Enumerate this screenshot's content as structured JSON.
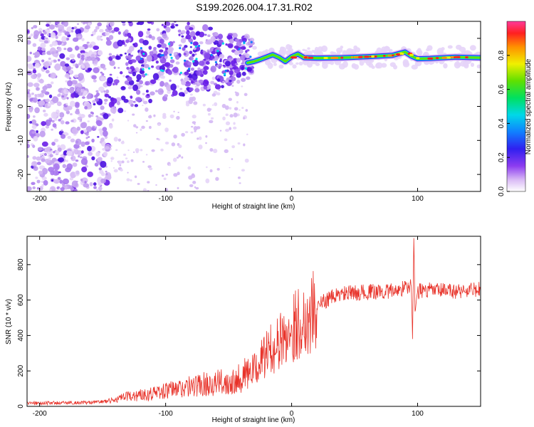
{
  "title": "S199.2026.004.17.31.R02",
  "colors": {
    "snr_line": "#e8332a",
    "axis": "#000000"
  },
  "chart_data": [
    {
      "type": "heatmap",
      "xlabel": "Height of straight line (km)",
      "ylabel": "Frequency (Hz)",
      "xlim": [
        -210,
        150
      ],
      "ylim": [
        -25,
        25
      ],
      "xticks": [
        -200,
        -100,
        0,
        100
      ],
      "yticks": [
        -20,
        -10,
        0,
        10,
        20
      ],
      "colorbar": {
        "label": "Normalized spectral amplitude",
        "range": [
          0,
          1
        ],
        "ticks": [
          0.0,
          0.2,
          0.4,
          0.6,
          0.8
        ],
        "colormap": "rainbow"
      },
      "carrier_frequency_hz": [
        [
          -35,
          12.8
        ],
        [
          -30,
          13.2
        ],
        [
          -25,
          13.8
        ],
        [
          -20,
          14.5
        ],
        [
          -15,
          15.2
        ],
        [
          -10,
          14.4
        ],
        [
          -5,
          13.2
        ],
        [
          0,
          14.6
        ],
        [
          5,
          15.4
        ],
        [
          10,
          14.3
        ],
        [
          20,
          14.2
        ],
        [
          40,
          14.3
        ],
        [
          60,
          14.6
        ],
        [
          80,
          15.0
        ],
        [
          90,
          16.0
        ],
        [
          95,
          14.8
        ],
        [
          100,
          14.0
        ],
        [
          110,
          14.1
        ],
        [
          130,
          14.5
        ],
        [
          150,
          14.3
        ]
      ]
    },
    {
      "type": "line",
      "xlabel": "Height of straight line (km)",
      "ylabel": "SNR (10 * v/v)",
      "xlim": [
        -210,
        150
      ],
      "ylim": [
        0,
        960
      ],
      "xticks": [
        -200,
        -100,
        0,
        100
      ],
      "yticks": [
        0,
        200,
        400,
        600,
        800
      ],
      "series": [
        {
          "x": [
            -210,
            -180,
            -160,
            -145,
            -130,
            -110,
            -90,
            -70,
            -50,
            -40,
            -30,
            -25,
            -20,
            -15,
            -10,
            -5,
            0,
            5,
            10,
            15,
            20,
            25,
            30,
            40,
            60,
            80,
            95,
            96,
            97,
            98,
            99,
            100,
            110,
            130,
            150
          ],
          "y": [
            18,
            20,
            22,
            30,
            55,
            75,
            100,
            125,
            140,
            170,
            200,
            250,
            300,
            330,
            360,
            390,
            440,
            470,
            480,
            520,
            560,
            590,
            610,
            635,
            645,
            650,
            680,
            380,
            960,
            520,
            600,
            650,
            655,
            650,
            660
          ]
        }
      ]
    }
  ]
}
